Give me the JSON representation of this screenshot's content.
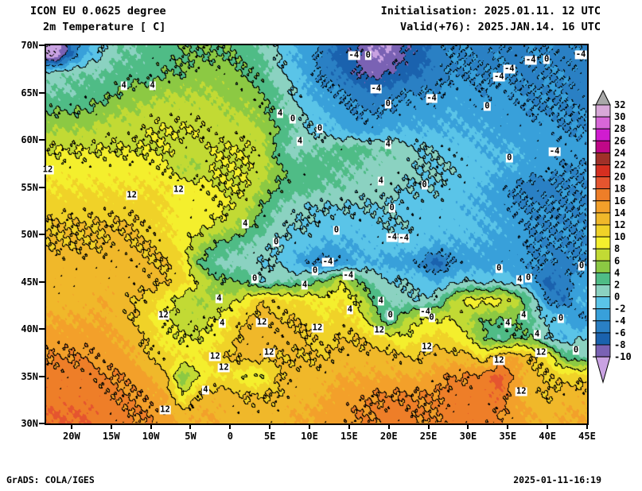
{
  "header": {
    "model": "ICON EU 0.0625 degree",
    "field": "2m Temperature [ C]",
    "init": "Initialisation: 2025.01.11. 12 UTC",
    "valid": "Valid(+76): 2025.JAN.14. 16 UTC"
  },
  "footer": {
    "left": "GrADS: COLA/IGES",
    "right": "2025-01-11-16:19"
  },
  "axes": {
    "lat_ticks": [
      {
        "label": "70N",
        "lat": 70
      },
      {
        "label": "65N",
        "lat": 65
      },
      {
        "label": "60N",
        "lat": 60
      },
      {
        "label": "55N",
        "lat": 55
      },
      {
        "label": "50N",
        "lat": 50
      },
      {
        "label": "45N",
        "lat": 45
      },
      {
        "label": "40N",
        "lat": 40
      },
      {
        "label": "35N",
        "lat": 35
      },
      {
        "label": "30N",
        "lat": 30
      }
    ],
    "lon_ticks": [
      {
        "label": "20W",
        "lon": -20
      },
      {
        "label": "15W",
        "lon": -15
      },
      {
        "label": "10W",
        "lon": -10
      },
      {
        "label": "5W",
        "lon": -5
      },
      {
        "label": "0",
        "lon": 0
      },
      {
        "label": "5E",
        "lon": 5
      },
      {
        "label": "10E",
        "lon": 10
      },
      {
        "label": "15E",
        "lon": 15
      },
      {
        "label": "20E",
        "lon": 20
      },
      {
        "label": "25E",
        "lon": 25
      },
      {
        "label": "30E",
        "lon": 30
      },
      {
        "label": "35E",
        "lon": 35
      },
      {
        "label": "40E",
        "lon": 40
      },
      {
        "label": "45E",
        "lon": 45
      }
    ]
  },
  "colorbar": {
    "levels": [
      32,
      30,
      28,
      26,
      24,
      22,
      20,
      18,
      16,
      14,
      12,
      10,
      8,
      6,
      4,
      2,
      0,
      -2,
      -4,
      -6,
      -8,
      -10
    ],
    "segment_colors": [
      "#d8a8d8",
      "#d866d8",
      "#d01cd0",
      "#c00888",
      "#a03028",
      "#d62f20",
      "#e5552f",
      "#ee7e28",
      "#f3a02a",
      "#f0b82a",
      "#f0d228",
      "#f4ef2d",
      "#c2da34",
      "#8cc943",
      "#4fbc86",
      "#8bd2c1",
      "#5ac4e8",
      "#38a0da",
      "#2a80c4",
      "#1a62ae",
      "#7a62b4"
    ],
    "above_color": "#a8a8a8",
    "below_color": "#c9a2e2"
  },
  "chart_data": {
    "type": "heatmap",
    "subtype": "filled_contour_temperature_map",
    "units": "C",
    "title": "ICON EU 0.0625 degree 2m Temperature [ C]",
    "lon_range": [
      -23.2,
      45
    ],
    "lat_range": [
      30,
      70
    ],
    "fill_interval": 2,
    "line_contour_interval": 4,
    "grid": {
      "lon_start": -22,
      "lon_step": 2,
      "ncols": 34,
      "lat_start": 69,
      "lat_step": -2,
      "nrows": 20,
      "values": [
        [
          -12,
          -6,
          -2,
          0,
          2,
          2,
          3,
          3,
          4,
          4,
          4,
          4,
          3,
          2,
          0,
          -2,
          -3,
          -5,
          -7,
          -8,
          -10,
          -10,
          -8,
          -7,
          -5,
          -4,
          -4,
          -5,
          -4,
          -5,
          -4,
          -4,
          -5,
          -4
        ],
        [
          1,
          2,
          2,
          2,
          3,
          3,
          3,
          4,
          4,
          5,
          5,
          5,
          4,
          3,
          1,
          -1,
          -3,
          -5,
          -6,
          -8,
          -9,
          -8,
          -7,
          -6,
          -5,
          -4,
          -4,
          -4,
          -4,
          -4,
          -5,
          -4,
          -4,
          -5
        ],
        [
          2,
          2,
          3,
          3,
          4,
          5,
          5,
          6,
          6,
          6,
          6,
          5,
          5,
          4,
          2,
          0,
          -2,
          -3,
          -4,
          -5,
          -6,
          -5,
          -4,
          -4,
          -4,
          -3,
          -3,
          -4,
          -3,
          -4,
          -4,
          -4,
          -4,
          -5
        ],
        [
          4,
          4,
          4,
          5,
          6,
          6,
          7,
          7,
          7,
          7,
          7,
          6,
          6,
          5,
          3,
          1,
          -1,
          -2,
          -3,
          -4,
          -4,
          -4,
          -3,
          -3,
          -3,
          -2,
          -3,
          -3,
          -3,
          -3,
          -4,
          -4,
          -4,
          -4
        ],
        [
          6,
          6,
          6,
          7,
          7,
          7,
          8,
          8,
          8,
          8,
          7,
          7,
          7,
          6,
          4,
          2,
          0,
          -1,
          -2,
          -3,
          -3,
          -2,
          -2,
          -2,
          -2,
          -2,
          -2,
          -2,
          -3,
          -3,
          -3,
          -3,
          -4,
          -4
        ],
        [
          8,
          8,
          8,
          8,
          8,
          8,
          8,
          8,
          7,
          7,
          8,
          8,
          8,
          7,
          3,
          1,
          2,
          2,
          3,
          3,
          2,
          2,
          1,
          0,
          0,
          -1,
          -1,
          -2,
          -2,
          -2,
          -3,
          -3,
          -3,
          -3
        ],
        [
          9,
          9,
          9,
          9,
          9,
          9,
          9,
          8,
          6,
          6,
          8,
          8,
          8,
          7,
          5,
          3,
          3,
          3,
          2,
          2,
          1,
          1,
          1,
          0,
          0,
          0,
          -1,
          -1,
          -2,
          -2,
          -3,
          -3,
          -4,
          -4
        ],
        [
          10,
          10,
          10,
          10,
          10,
          10,
          10,
          10,
          9,
          9,
          8,
          8,
          8,
          6,
          4,
          3,
          3,
          2,
          2,
          1,
          1,
          1,
          0,
          0,
          0,
          -1,
          -1,
          -2,
          -3,
          -4,
          -5,
          -5,
          -4,
          -4
        ],
        [
          11,
          11,
          11,
          11,
          11,
          11,
          11,
          10,
          9,
          9,
          9,
          8,
          7,
          4,
          2,
          1,
          0,
          0,
          0,
          0,
          0,
          0,
          -1,
          -1,
          -1,
          -1,
          -2,
          -2,
          -3,
          -4,
          -4,
          -4,
          -4,
          -4
        ],
        [
          12,
          12,
          12,
          12,
          12,
          12,
          11,
          10,
          9,
          9,
          8,
          7,
          5,
          3,
          1,
          0,
          0,
          -1,
          -1,
          -1,
          -1,
          0,
          0,
          -1,
          -1,
          -1,
          -1,
          -2,
          -2,
          -3,
          -4,
          -4,
          -4,
          -4
        ],
        [
          12,
          12,
          12,
          12,
          13,
          12,
          12,
          11,
          9,
          7,
          4,
          3,
          2,
          1,
          0,
          -1,
          -1,
          -2,
          -2,
          -2,
          -1,
          -1,
          -1,
          -1,
          -2,
          -2,
          -2,
          -2,
          -3,
          -3,
          -4,
          -4,
          -4,
          -4
        ],
        [
          13,
          13,
          13,
          13,
          13,
          13,
          12,
          12,
          10,
          4,
          2,
          1,
          1,
          0,
          0,
          -2,
          -4,
          -5,
          -4,
          -2,
          -2,
          -3,
          -3,
          -4,
          -7,
          -4,
          -3,
          -3,
          -3,
          -3,
          -4,
          -4,
          -5,
          -4
        ],
        [
          13,
          13,
          13,
          13,
          13,
          13,
          13,
          12,
          11,
          8,
          5,
          4,
          4,
          0,
          2,
          2,
          3,
          4,
          8,
          4,
          2,
          0,
          0,
          -1,
          -2,
          -1,
          0,
          -1,
          0,
          -2,
          -3,
          -7,
          -5,
          -3
        ],
        [
          13,
          13,
          13,
          14,
          13,
          12,
          11,
          9,
          7,
          6,
          6,
          7,
          9,
          12,
          11,
          10,
          10,
          9,
          10,
          8,
          4,
          2,
          1,
          0,
          1,
          6,
          9,
          9,
          9,
          7,
          2,
          -4,
          -6,
          -2
        ],
        [
          14,
          14,
          14,
          14,
          13,
          12,
          10,
          8,
          7,
          7,
          8,
          10,
          12,
          13,
          12,
          12,
          11,
          10,
          11,
          10,
          6,
          1,
          6,
          8,
          8,
          8,
          6,
          4,
          4,
          4,
          2,
          0,
          -1,
          -4
        ],
        [
          15,
          15,
          15,
          15,
          14,
          13,
          11,
          9,
          8,
          8,
          9,
          11,
          13,
          13,
          13,
          13,
          12,
          11,
          12,
          12,
          11,
          10,
          8,
          10,
          11,
          10,
          8,
          4,
          2,
          4,
          4,
          0,
          -2,
          0
        ],
        [
          16,
          16,
          16,
          15,
          15,
          14,
          12,
          11,
          10,
          10,
          11,
          12,
          13,
          13,
          12,
          12,
          12,
          12,
          13,
          13,
          13,
          13,
          12,
          12,
          13,
          13,
          13,
          10,
          14,
          14,
          12,
          10,
          4,
          2
        ],
        [
          17,
          17,
          17,
          16,
          16,
          15,
          14,
          12,
          4,
          8,
          10,
          10,
          8,
          8,
          12,
          13,
          13,
          13,
          14,
          14,
          14,
          14,
          14,
          14,
          15,
          16,
          16,
          17,
          19,
          15,
          13,
          12,
          11,
          11
        ],
        [
          17,
          17,
          17,
          17,
          16,
          16,
          15,
          14,
          8,
          12,
          13,
          13,
          12,
          12,
          12,
          13,
          13,
          14,
          15,
          15,
          16,
          16,
          16,
          16,
          16,
          17,
          17,
          17,
          18,
          14,
          13,
          12,
          13,
          13
        ],
        [
          18,
          18,
          18,
          17,
          17,
          16,
          16,
          15,
          13,
          14,
          14,
          13,
          13,
          13,
          13,
          14,
          14,
          15,
          15,
          16,
          16,
          17,
          17,
          16,
          16,
          17,
          17,
          17,
          16,
          15,
          14,
          13,
          14,
          14
        ]
      ]
    },
    "contour_labels": [
      {
        "lon": -13.4,
        "lat": 65.7,
        "text": "4"
      },
      {
        "lon": -9.8,
        "lat": 65.7,
        "text": "4"
      },
      {
        "lon": 6.3,
        "lat": 62.8,
        "text": "4"
      },
      {
        "lon": 7.9,
        "lat": 62.2,
        "text": "0"
      },
      {
        "lon": 8.8,
        "lat": 59.8,
        "text": "4"
      },
      {
        "lon": -23.0,
        "lat": 56.8,
        "text": "12"
      },
      {
        "lon": -12.4,
        "lat": 54.1,
        "text": "12"
      },
      {
        "lon": -6.5,
        "lat": 54.7,
        "text": "12"
      },
      {
        "lon": 1.9,
        "lat": 51.1,
        "text": "4"
      },
      {
        "lon": 15.6,
        "lat": 68.9,
        "text": "-4"
      },
      {
        "lon": 17.4,
        "lat": 68.9,
        "text": "0"
      },
      {
        "lon": 37.9,
        "lat": 68.4,
        "text": "-4"
      },
      {
        "lon": 39.9,
        "lat": 68.5,
        "text": "0"
      },
      {
        "lon": 44.2,
        "lat": 69.0,
        "text": "-4"
      },
      {
        "lon": 35.2,
        "lat": 67.5,
        "text": "-4"
      },
      {
        "lon": 33.9,
        "lat": 66.6,
        "text": "-4"
      },
      {
        "lon": 18.4,
        "lat": 65.4,
        "text": "-4"
      },
      {
        "lon": 25.4,
        "lat": 64.4,
        "text": "-4"
      },
      {
        "lon": 19.9,
        "lat": 63.8,
        "text": "0"
      },
      {
        "lon": 32.4,
        "lat": 63.5,
        "text": "0"
      },
      {
        "lon": 11.3,
        "lat": 61.2,
        "text": "0"
      },
      {
        "lon": 19.9,
        "lat": 59.5,
        "text": "4"
      },
      {
        "lon": 35.2,
        "lat": 58.1,
        "text": "0"
      },
      {
        "lon": 40.9,
        "lat": 58.7,
        "text": "-4"
      },
      {
        "lon": 19.0,
        "lat": 55.6,
        "text": "4"
      },
      {
        "lon": 24.5,
        "lat": 55.2,
        "text": "0"
      },
      {
        "lon": 20.4,
        "lat": 52.8,
        "text": "0"
      },
      {
        "lon": 5.8,
        "lat": 49.2,
        "text": "0"
      },
      {
        "lon": 13.4,
        "lat": 50.4,
        "text": "0"
      },
      {
        "lon": 20.4,
        "lat": 49.7,
        "text": "-4"
      },
      {
        "lon": 21.9,
        "lat": 49.6,
        "text": "-4"
      },
      {
        "lon": 12.3,
        "lat": 47.1,
        "text": "-4"
      },
      {
        "lon": 10.7,
        "lat": 46.1,
        "text": "0"
      },
      {
        "lon": 14.9,
        "lat": 45.6,
        "text": "-4"
      },
      {
        "lon": 3.1,
        "lat": 45.3,
        "text": "0"
      },
      {
        "lon": 9.4,
        "lat": 44.6,
        "text": "4"
      },
      {
        "lon": 19.0,
        "lat": 42.9,
        "text": "4"
      },
      {
        "lon": 20.2,
        "lat": 41.4,
        "text": "0"
      },
      {
        "lon": 15.1,
        "lat": 42.0,
        "text": "4"
      },
      {
        "lon": 4.0,
        "lat": 40.7,
        "text": "12"
      },
      {
        "lon": 11.0,
        "lat": 40.1,
        "text": "12"
      },
      {
        "lon": 18.8,
        "lat": 39.8,
        "text": "12"
      },
      {
        "lon": 24.8,
        "lat": 38.1,
        "text": "12"
      },
      {
        "lon": -1.9,
        "lat": 37.1,
        "text": "12"
      },
      {
        "lon": 4.9,
        "lat": 37.5,
        "text": "12"
      },
      {
        "lon": -8.4,
        "lat": 41.4,
        "text": "12"
      },
      {
        "lon": -1.4,
        "lat": 43.2,
        "text": "4"
      },
      {
        "lon": -1.0,
        "lat": 40.6,
        "text": "4"
      },
      {
        "lon": -0.8,
        "lat": 35.9,
        "text": "12"
      },
      {
        "lon": -3.1,
        "lat": 33.5,
        "text": "4"
      },
      {
        "lon": -8.2,
        "lat": 31.4,
        "text": "12"
      },
      {
        "lon": 33.9,
        "lat": 46.4,
        "text": "0"
      },
      {
        "lon": 36.5,
        "lat": 45.2,
        "text": "4"
      },
      {
        "lon": 37.6,
        "lat": 45.4,
        "text": "0"
      },
      {
        "lon": 44.3,
        "lat": 46.6,
        "text": "0"
      },
      {
        "lon": 24.6,
        "lat": 41.8,
        "text": "-4"
      },
      {
        "lon": 25.4,
        "lat": 41.2,
        "text": "0"
      },
      {
        "lon": 35.0,
        "lat": 40.6,
        "text": "4"
      },
      {
        "lon": 37.0,
        "lat": 41.4,
        "text": "4"
      },
      {
        "lon": 41.7,
        "lat": 41.1,
        "text": "0"
      },
      {
        "lon": 38.7,
        "lat": 39.4,
        "text": "4"
      },
      {
        "lon": 43.6,
        "lat": 37.7,
        "text": "0"
      },
      {
        "lon": 33.9,
        "lat": 36.6,
        "text": "12"
      },
      {
        "lon": 39.2,
        "lat": 37.5,
        "text": "12"
      },
      {
        "lon": 36.7,
        "lat": 33.4,
        "text": "12"
      }
    ]
  }
}
